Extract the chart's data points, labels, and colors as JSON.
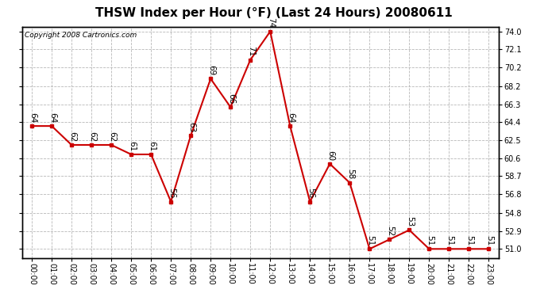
{
  "title": "THSW Index per Hour (°F) (Last 24 Hours) 20080611",
  "copyright": "Copyright 2008 Cartronics.com",
  "hours": [
    "00:00",
    "01:00",
    "02:00",
    "03:00",
    "04:00",
    "05:00",
    "06:00",
    "07:00",
    "08:00",
    "09:00",
    "10:00",
    "11:00",
    "12:00",
    "13:00",
    "14:00",
    "15:00",
    "16:00",
    "17:00",
    "18:00",
    "19:00",
    "20:00",
    "21:00",
    "22:00",
    "23:00"
  ],
  "values": [
    64,
    64,
    62,
    62,
    62,
    61,
    61,
    56,
    63,
    69,
    66,
    71,
    74,
    64,
    56,
    60,
    58,
    51,
    52,
    53,
    51,
    51,
    51,
    51
  ],
  "yticks": [
    51.0,
    52.9,
    54.8,
    56.8,
    58.7,
    60.6,
    62.5,
    64.4,
    66.3,
    68.2,
    70.2,
    72.1,
    74.0
  ],
  "ylim": [
    50.0,
    74.5
  ],
  "line_color": "#cc0000",
  "marker_color": "#cc0000",
  "bg_color": "#ffffff",
  "plot_bg_color": "#ffffff",
  "grid_color": "#b0b0b0",
  "title_fontsize": 11,
  "tick_fontsize": 7,
  "annotation_fontsize": 7.5
}
